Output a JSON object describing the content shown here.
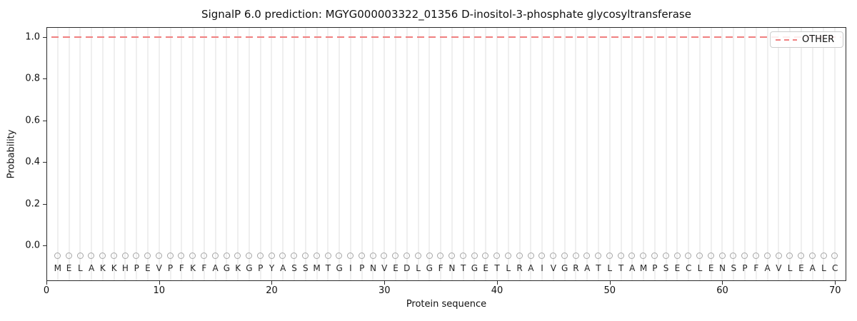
{
  "chart_data": {
    "type": "line",
    "title": "SignalP 6.0 prediction: MGYG000003322_01356 D-inositol-3-phosphate glycosyltransferase",
    "xlabel": "Protein sequence",
    "ylabel": "Probability",
    "xlim": [
      0,
      71
    ],
    "ylim": [
      -0.171,
      1.048
    ],
    "xticks": [
      0,
      10,
      20,
      30,
      40,
      50,
      60,
      70
    ],
    "yticks": [
      0.0,
      0.2,
      0.4,
      0.6,
      0.8,
      1.0
    ],
    "ytick_labels": [
      "0.0",
      "0.2",
      "0.4",
      "0.6",
      "0.8",
      "1.0"
    ],
    "grid": "vertical-per-residue",
    "legend_position": "upper-right",
    "series": [
      {
        "name": "OTHER",
        "color": "#f08080",
        "style": "dashed",
        "x": [
          1,
          2,
          3,
          4,
          5,
          6,
          7,
          8,
          9,
          10,
          11,
          12,
          13,
          14,
          15,
          16,
          17,
          18,
          19,
          20,
          21,
          22,
          23,
          24,
          25,
          26,
          27,
          28,
          29,
          30,
          31,
          32,
          33,
          34,
          35,
          36,
          37,
          38,
          39,
          40,
          41,
          42,
          43,
          44,
          45,
          46,
          47,
          48,
          49,
          50,
          51,
          52,
          53,
          54,
          55,
          56,
          57,
          58,
          59,
          60,
          61,
          62,
          63,
          64,
          65,
          66,
          67,
          68,
          69,
          70
        ],
        "values": [
          1.0,
          1.0,
          1.0,
          1.0,
          1.0,
          1.0,
          1.0,
          1.0,
          1.0,
          1.0,
          1.0,
          1.0,
          1.0,
          1.0,
          1.0,
          1.0,
          1.0,
          1.0,
          1.0,
          1.0,
          1.0,
          1.0,
          1.0,
          1.0,
          1.0,
          1.0,
          1.0,
          1.0,
          1.0,
          1.0,
          1.0,
          1.0,
          1.0,
          1.0,
          1.0,
          1.0,
          1.0,
          1.0,
          1.0,
          1.0,
          1.0,
          1.0,
          1.0,
          1.0,
          1.0,
          1.0,
          1.0,
          1.0,
          1.0,
          1.0,
          1.0,
          1.0,
          1.0,
          1.0,
          1.0,
          1.0,
          1.0,
          1.0,
          1.0,
          1.0,
          1.0,
          1.0,
          1.0,
          1.0,
          1.0,
          1.0,
          1.0,
          1.0,
          1.0,
          1.0
        ]
      }
    ],
    "sequence": "MELAKKHPEVPFKFAGKGPYASSMTGIPNVEDLGFNTGETLRAIVGRATLTAMPSECLENSPFAVLEALC",
    "residue_marker": {
      "shape": "open-circle",
      "color": "#a6a6a6",
      "y": -0.05
    },
    "colors": {
      "accent": "#f08080",
      "grid": "#efefef",
      "spine": "#2b2b2b",
      "text": "#111111",
      "letters": "#262626",
      "background": "#ffffff"
    }
  },
  "legend": {
    "entries": [
      {
        "label": "OTHER",
        "color": "#f08080",
        "line_style": "dashed"
      }
    ]
  }
}
